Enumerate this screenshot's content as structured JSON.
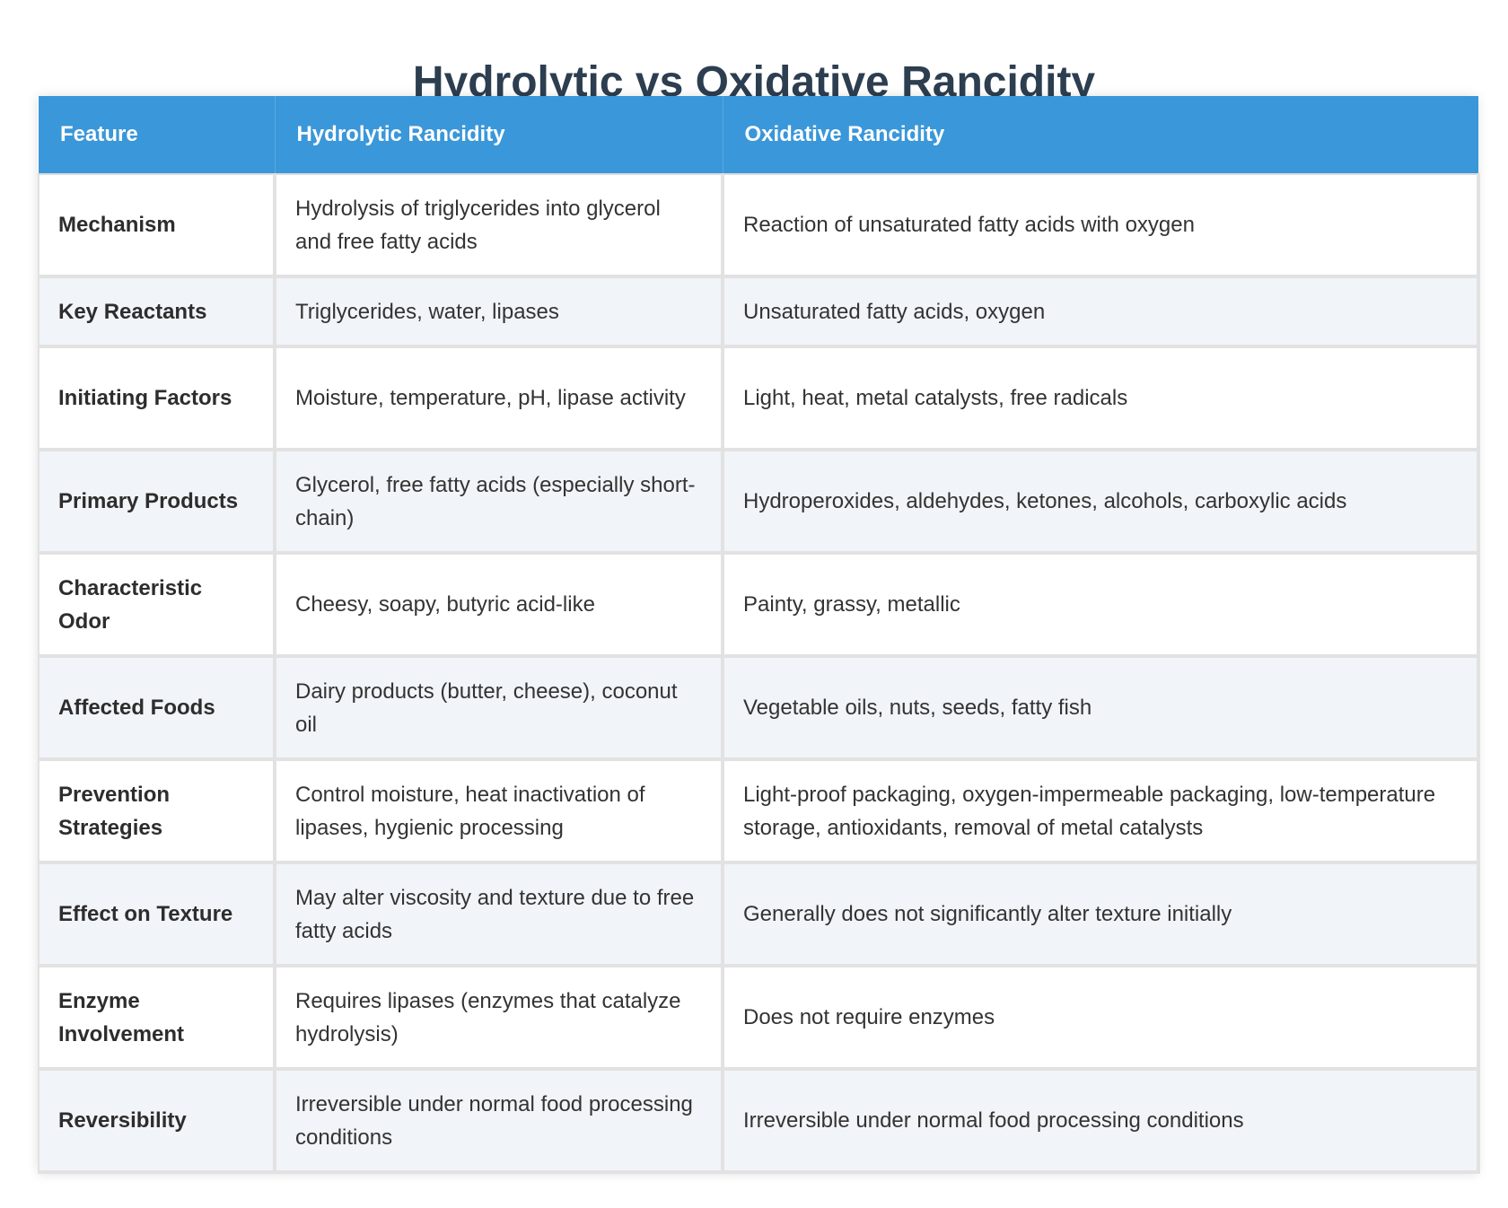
{
  "title": "Hydrolytic vs Oxidative Rancidity",
  "table": {
    "headers": [
      "Feature",
      "Hydrolytic Rancidity",
      "Oxidative Rancidity"
    ],
    "rows": [
      [
        "Mechanism",
        "Hydrolysis of triglycerides into glycerol and free fatty acids",
        "Reaction of unsaturated fatty acids with oxygen"
      ],
      [
        "Key Reactants",
        "Triglycerides, water, lipases",
        "Unsaturated fatty acids, oxygen"
      ],
      [
        "Initiating Factors",
        "Moisture, temperature, pH, lipase activity",
        "Light, heat, metal catalysts, free radicals"
      ],
      [
        "Primary Products",
        "Glycerol, free fatty acids (especially short-chain)",
        "Hydroperoxides, aldehydes, ketones, alcohols, carboxylic acids"
      ],
      [
        "Characteristic Odor",
        "Cheesy, soapy, butyric acid-like",
        "Painty, grassy, metallic"
      ],
      [
        "Affected Foods",
        "Dairy products (butter, cheese), coconut oil",
        "Vegetable oils, nuts, seeds, fatty fish"
      ],
      [
        "Prevention Strategies",
        "Control moisture, heat inactivation of lipases, hygienic processing",
        "Light-proof packaging, oxygen-impermeable packaging, low-temperature storage, antioxidants, removal of metal catalysts"
      ],
      [
        "Effect on Texture",
        "May alter viscosity and texture due to free fatty acids",
        "Generally does not significantly alter texture initially"
      ],
      [
        "Enzyme Involvement",
        "Requires lipases (enzymes that catalyze hydrolysis)",
        "Does not require enzymes"
      ],
      [
        "Reversibility",
        "Irreversible under normal food processing conditions",
        "Irreversible under normal food processing conditions"
      ]
    ]
  },
  "colors": {
    "header_bg": "#3a97d9",
    "title": "#2c3e50",
    "row_alt": "#f1f4f8"
  }
}
